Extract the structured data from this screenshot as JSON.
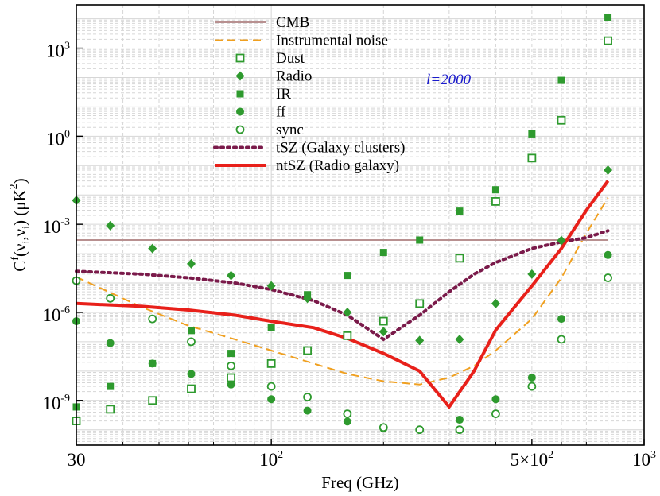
{
  "chart_data": {
    "type": "scatter",
    "x_scale": "log",
    "y_scale": "log",
    "xlim": [
      30,
      1000
    ],
    "ylim": [
      3e-11,
      30000.0
    ],
    "xlabel": "Freq (GHz)",
    "ylabel": "C^f(ν_i,ν_i) (μK^2)",
    "x_ticks": [
      {
        "value": 30,
        "label": "30"
      },
      {
        "value": 100,
        "label": "10",
        "sup": "2"
      },
      {
        "value": 500,
        "label": "5×10",
        "sup": "2"
      },
      {
        "value": 1000,
        "label": "10",
        "sup": "3"
      }
    ],
    "y_ticks": [
      {
        "value": 1e-09,
        "label": "10",
        "sup": "-9"
      },
      {
        "value": 1e-06,
        "label": "10",
        "sup": "-6"
      },
      {
        "value": 0.001,
        "label": "10",
        "sup": "-3"
      },
      {
        "value": 1,
        "label": "10",
        "sup": "0"
      },
      {
        "value": 1000,
        "label": "10",
        "sup": "3"
      }
    ],
    "annotation": "l=2000",
    "grid": true,
    "legend_position": "top-center",
    "series": [
      {
        "name": "CMB",
        "kind": "line",
        "style": "solid",
        "color": "#b89090",
        "x": [
          30,
          800
        ],
        "y": [
          0.00029,
          0.00029
        ]
      },
      {
        "name": "Instrumental noise",
        "kind": "line",
        "style": "dashed",
        "color": "#f0a020",
        "x": [
          30,
          45,
          60,
          80,
          100,
          130,
          160,
          200,
          250,
          300,
          350,
          400,
          500,
          600,
          700,
          800
        ],
        "y": [
          1.6e-05,
          1.5e-06,
          3.5e-07,
          1.2e-07,
          5e-08,
          1.8e-08,
          8e-09,
          4.5e-09,
          3.5e-09,
          6e-09,
          1.5e-08,
          5e-08,
          6e-07,
          1.5e-05,
          0.0005,
          0.008
        ]
      },
      {
        "name": "Dust",
        "kind": "points",
        "marker": "square-open",
        "color": "#2e9a2e",
        "x": [
          30,
          37,
          48,
          61,
          78,
          100,
          125,
          160,
          200,
          250,
          320,
          400,
          500,
          600,
          800
        ],
        "y": [
          2e-10,
          5e-10,
          1e-09,
          2.5e-09,
          6e-09,
          1.8e-08,
          5e-08,
          1.6e-07,
          5e-07,
          2e-06,
          7e-05,
          0.006,
          0.18,
          3.5,
          1800
        ]
      },
      {
        "name": "Radio",
        "kind": "points",
        "marker": "diamond",
        "color": "#2e9a2e",
        "x": [
          30,
          37,
          48,
          61,
          78,
          100,
          125,
          160,
          200,
          250,
          320,
          400,
          500,
          600,
          800
        ],
        "y": [
          0.0065,
          0.0009,
          0.00015,
          4.5e-05,
          1.8e-05,
          8e-06,
          3e-06,
          1e-06,
          2.2e-07,
          1.1e-07,
          1.2e-07,
          2e-06,
          2e-05,
          0.00028,
          0.07
        ]
      },
      {
        "name": "IR",
        "kind": "points",
        "marker": "square",
        "color": "#2e9a2e",
        "x": [
          30,
          37,
          48,
          61,
          78,
          100,
          125,
          160,
          200,
          250,
          320,
          400,
          500,
          600,
          800
        ],
        "y": [
          6e-10,
          3e-09,
          1.8e-08,
          2.4e-07,
          4e-08,
          3e-07,
          4e-06,
          1.8e-05,
          0.00011,
          0.00029,
          0.0028,
          0.015,
          1.2,
          80,
          11000
        ]
      },
      {
        "name": "ff",
        "kind": "points",
        "marker": "circle",
        "color": "#2e9a2e",
        "x": [
          30,
          37,
          48,
          61,
          78,
          100,
          125,
          160,
          200,
          250,
          320,
          400,
          500,
          600,
          800
        ],
        "y": [
          5e-07,
          9e-08,
          1.8e-08,
          8e-09,
          3.5e-09,
          1.1e-09,
          4.5e-10,
          1.9e-10,
          1.1e-10,
          1e-10,
          2.2e-10,
          1.1e-09,
          6e-09,
          6e-07,
          9e-05
        ]
      },
      {
        "name": "sync",
        "kind": "points",
        "marker": "circle-open",
        "color": "#2e9a2e",
        "x": [
          30,
          37,
          48,
          61,
          78,
          100,
          125,
          160,
          200,
          250,
          320,
          400,
          500,
          600,
          800
        ],
        "y": [
          1.2e-05,
          3e-06,
          6e-07,
          1e-07,
          1.5e-08,
          3e-09,
          1.3e-09,
          3.5e-10,
          1.2e-10,
          1e-10,
          1e-10,
          3.5e-10,
          3e-09,
          1.2e-07,
          1.5e-05
        ]
      },
      {
        "name": "tSZ (Galaxy clusters)",
        "kind": "line",
        "style": "dotted",
        "color": "#7a1a4a",
        "x": [
          30,
          45,
          60,
          80,
          100,
          130,
          160,
          200,
          250,
          300,
          350,
          400,
          500,
          600,
          700,
          800
        ],
        "y": [
          2.5e-05,
          2e-05,
          1.5e-05,
          1e-05,
          6e-06,
          2.5e-06,
          8e-07,
          1.2e-07,
          8e-07,
          5e-06,
          2e-05,
          5e-05,
          0.00015,
          0.00025,
          0.00035,
          0.0006
        ]
      },
      {
        "name": "ntSZ (Radio galaxy)",
        "kind": "line",
        "style": "solid",
        "color": "#e8201a",
        "x": [
          30,
          45,
          60,
          80,
          100,
          130,
          160,
          200,
          250,
          300,
          350,
          400,
          500,
          600,
          700,
          800
        ],
        "y": [
          2e-06,
          1.6e-06,
          1.2e-06,
          8e-07,
          5e-07,
          3e-07,
          1.3e-07,
          4e-08,
          1e-08,
          6e-10,
          1e-08,
          2.5e-07,
          8e-06,
          0.00015,
          0.003,
          0.03
        ]
      }
    ]
  }
}
